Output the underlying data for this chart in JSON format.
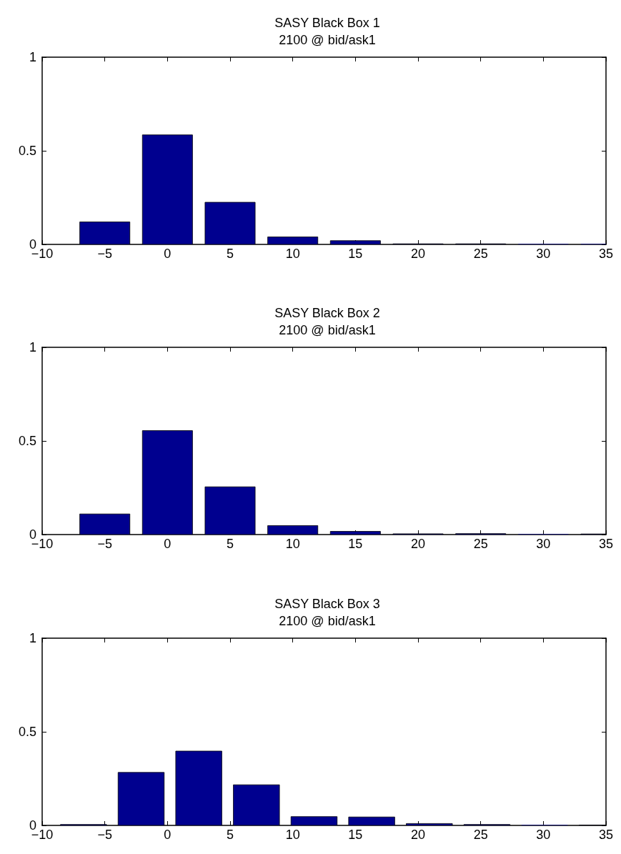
{
  "chart_data": [
    {
      "type": "bar",
      "title": "SASY Black Box 1",
      "subtitle": "2100 @ bid/ask1",
      "color": "#00008f",
      "x": [
        -5,
        0,
        5,
        10,
        15,
        20,
        25,
        30,
        35
      ],
      "values": [
        0.12,
        0.585,
        0.225,
        0.04,
        0.02,
        0.003,
        0.003,
        0,
        0
      ],
      "xlim": [
        -10,
        35
      ],
      "xticks": [
        -10,
        -5,
        0,
        5,
        10,
        15,
        20,
        25,
        30,
        35
      ],
      "ylim": [
        0,
        1
      ],
      "yticks": [
        0,
        0.5,
        1
      ]
    },
    {
      "type": "bar",
      "title": "SASY Black Box 2",
      "subtitle": "2100 @ bid/ask1",
      "color": "#00008f",
      "x": [
        -5,
        0,
        5,
        10,
        15,
        20,
        25,
        30,
        35
      ],
      "values": [
        0.11,
        0.555,
        0.255,
        0.048,
        0.017,
        0.004,
        0.005,
        0,
        0.003
      ],
      "xlim": [
        -10,
        35
      ],
      "xticks": [
        -10,
        -5,
        0,
        5,
        10,
        15,
        20,
        25,
        30,
        35
      ],
      "ylim": [
        0,
        1
      ],
      "yticks": [
        0,
        0.5,
        1
      ]
    },
    {
      "type": "bar",
      "title": "SASY Black Box 3",
      "subtitle": "2100 @ bid/ask1",
      "color": "#00008f",
      "x": [
        -6.7,
        -2.1,
        2.5,
        7.1,
        11.7,
        16.3,
        20.9,
        25.5,
        30.1,
        34.7
      ],
      "values": [
        0.005,
        0.283,
        0.397,
        0.217,
        0.047,
        0.045,
        0.01,
        0.005,
        0,
        0.002
      ],
      "xlim": [
        -10,
        35
      ],
      "xticks": [
        -10,
        -5,
        0,
        5,
        10,
        15,
        20,
        25,
        30,
        35
      ],
      "ylim": [
        0,
        1
      ],
      "yticks": [
        0,
        0.5,
        1
      ]
    }
  ]
}
